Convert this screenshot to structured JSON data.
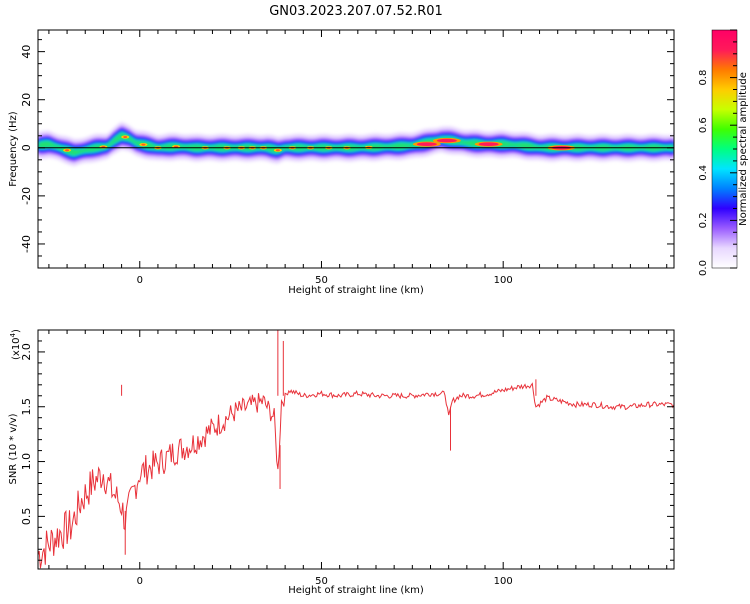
{
  "title": "GN03.2023.207.07.52.R01",
  "chart_data": [
    {
      "type": "heatmap",
      "xlabel": "Height of straight line (km)",
      "ylabel": "Frequency (Hz)",
      "xlim": [
        -28,
        147
      ],
      "ylim": [
        -50,
        49
      ],
      "x_ticks": [
        0,
        50,
        100
      ],
      "y_ticks": [
        -40,
        -20,
        0,
        20,
        40
      ],
      "colorbar": {
        "label": "Normalized spectral amplitude",
        "range": [
          0,
          1
        ],
        "ticks": [
          "0.0",
          "0.2",
          "0.4",
          "0.6",
          "0.8"
        ],
        "colors": [
          "#ffffff",
          "#e8d8ff",
          "#9a5cff",
          "#2f00ff",
          "#0080ff",
          "#00e5ff",
          "#00ff80",
          "#40ff00",
          "#c8ff00",
          "#ffcc00",
          "#ff7a00",
          "#ff1a5a",
          "#ff0066"
        ]
      },
      "ridge": [
        [
          -28,
          1
        ],
        [
          -25,
          1.5
        ],
        [
          -22,
          0
        ],
        [
          -18,
          -2
        ],
        [
          -15,
          -1
        ],
        [
          -12,
          0
        ],
        [
          -9,
          0.5
        ],
        [
          -7,
          3
        ],
        [
          -5,
          5
        ],
        [
          -3,
          4
        ],
        [
          -1,
          2
        ],
        [
          2,
          1
        ],
        [
          5,
          0
        ],
        [
          10,
          0.5
        ],
        [
          15,
          0
        ],
        [
          20,
          0
        ],
        [
          25,
          0
        ],
        [
          30,
          0
        ],
        [
          35,
          0
        ],
        [
          38,
          -1
        ],
        [
          40,
          0
        ],
        [
          50,
          0
        ],
        [
          60,
          0
        ],
        [
          70,
          0.5
        ],
        [
          75,
          1
        ],
        [
          80,
          2.5
        ],
        [
          83,
          3.5
        ],
        [
          86,
          3
        ],
        [
          90,
          2
        ],
        [
          95,
          1.5
        ],
        [
          100,
          1.5
        ],
        [
          105,
          1
        ],
        [
          110,
          0
        ],
        [
          120,
          0
        ],
        [
          130,
          0
        ],
        [
          147,
          0
        ]
      ],
      "peaks": [
        {
          "x": 79,
          "f": 1.5
        },
        {
          "x": 84.5,
          "f": 3
        },
        {
          "x": 96,
          "f": 1.5
        },
        {
          "x": 116,
          "f": 0
        }
      ],
      "reference_line_hz": 0
    },
    {
      "type": "line",
      "xlabel": "Height of straight line (km)",
      "ylabel": "SNR (10 * v/v)",
      "multiplier": "(x10",
      "multiplier_exp": "4",
      "xlim": [
        -28,
        147
      ],
      "ylim": [
        0.02,
        2.2
      ],
      "x_ticks": [
        0,
        50,
        100
      ],
      "y_ticks": [
        "0.5",
        "1.0",
        "1.5",
        "2.0"
      ],
      "series": [
        {
          "color": "#e8323a",
          "x": [
            -28,
            -25,
            -22,
            -19,
            -16,
            -13,
            -10,
            -8,
            -5,
            -4,
            -2,
            0,
            3,
            6,
            10,
            14,
            18,
            22,
            26,
            30,
            34,
            37,
            38,
            39,
            41,
            45,
            50,
            55,
            60,
            65,
            70,
            75,
            80,
            84,
            85,
            86,
            88,
            92,
            96,
            100,
            104,
            108,
            109,
            112,
            116,
            120,
            125,
            130,
            135,
            140,
            145,
            147
          ],
          "y": [
            0.15,
            0.25,
            0.35,
            0.4,
            0.65,
            0.8,
            0.9,
            0.75,
            0.6,
            0.45,
            0.7,
            0.9,
            0.95,
            1.0,
            1.1,
            1.15,
            1.25,
            1.35,
            1.45,
            1.5,
            1.55,
            1.4,
            0.9,
            1.55,
            1.65,
            1.6,
            1.62,
            1.6,
            1.62,
            1.6,
            1.6,
            1.6,
            1.62,
            1.62,
            1.4,
            1.55,
            1.6,
            1.6,
            1.62,
            1.65,
            1.68,
            1.7,
            1.5,
            1.58,
            1.55,
            1.52,
            1.52,
            1.5,
            1.5,
            1.52,
            1.52,
            1.52
          ]
        }
      ]
    }
  ]
}
